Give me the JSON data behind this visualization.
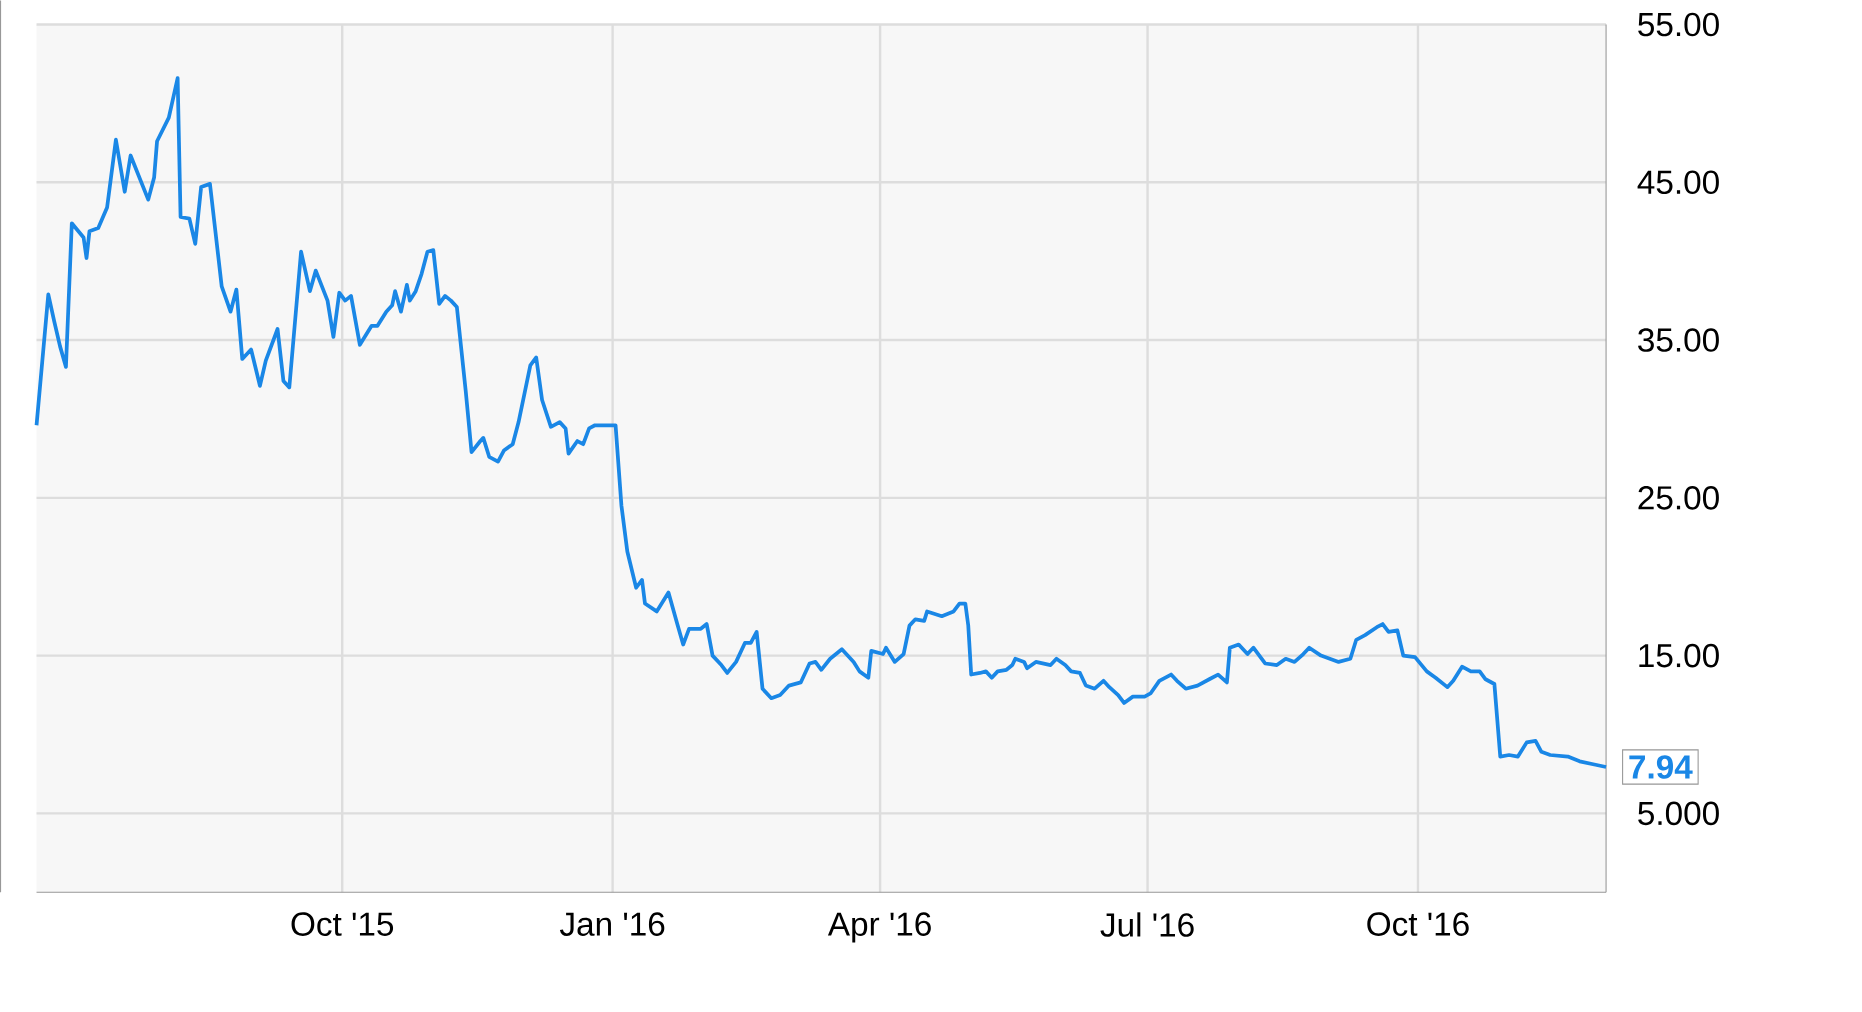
{
  "chart_data": {
    "type": "line",
    "color": "#1a87e6",
    "grid": true,
    "xlim": [
      "2015-06-19",
      "2016-12-04"
    ],
    "ylim": [
      0,
      55
    ],
    "xticks": [
      {
        "value": "2015-10-01",
        "label": "Oct '15"
      },
      {
        "value": "2016-01-01",
        "label": "Jan '16"
      },
      {
        "value": "2016-04-01",
        "label": "Apr '16"
      },
      {
        "value": "2016-07-01",
        "label": "Jul '16"
      },
      {
        "value": "2016-10-01",
        "label": "Oct '16"
      }
    ],
    "yticks": [
      {
        "value": 5,
        "label": "5.000"
      },
      {
        "value": 15,
        "label": "15.00"
      },
      {
        "value": 25,
        "label": "25.00"
      },
      {
        "value": 35,
        "label": "35.00"
      },
      {
        "value": 45,
        "label": "45.00"
      },
      {
        "value": 55,
        "label": "55.00"
      }
    ],
    "annotations": [
      {
        "text": "7.94",
        "x": "2016-12-04",
        "y": 7.94
      }
    ],
    "x": [
      "2015-06-19",
      "2015-06-23",
      "2015-06-25",
      "2015-06-27",
      "2015-06-29",
      "2015-07-01",
      "2015-07-05",
      "2015-07-06",
      "2015-07-07",
      "2015-07-10",
      "2015-07-13",
      "2015-07-16",
      "2015-07-19",
      "2015-07-21",
      "2015-07-24",
      "2015-07-27",
      "2015-07-29",
      "2015-07-30",
      "2015-08-03",
      "2015-08-06",
      "2015-08-07",
      "2015-08-10",
      "2015-08-12",
      "2015-08-14",
      "2015-08-17",
      "2015-08-21",
      "2015-08-24",
      "2015-08-26",
      "2015-08-28",
      "2015-08-31",
      "2015-09-03",
      "2015-09-05",
      "2015-09-09",
      "2015-09-11",
      "2015-09-13",
      "2015-09-17",
      "2015-09-20",
      "2015-09-22",
      "2015-09-26",
      "2015-09-28",
      "2015-09-30",
      "2015-10-02",
      "2015-10-04",
      "2015-10-07",
      "2015-10-11",
      "2015-10-13",
      "2015-10-16",
      "2015-10-18",
      "2015-10-19",
      "2015-10-21",
      "2015-10-23",
      "2015-10-24",
      "2015-10-26",
      "2015-10-28",
      "2015-10-30",
      "2015-11-01",
      "2015-11-03",
      "2015-11-05",
      "2015-11-07",
      "2015-11-09",
      "2015-11-12",
      "2015-11-14",
      "2015-11-17",
      "2015-11-18",
      "2015-11-20",
      "2015-11-23",
      "2015-11-25",
      "2015-11-28",
      "2015-11-30",
      "2015-12-04",
      "2015-12-06",
      "2015-12-08",
      "2015-12-11",
      "2015-12-14",
      "2015-12-16",
      "2015-12-17",
      "2015-12-20",
      "2015-12-22",
      "2015-12-24",
      "2015-12-26",
      "2016-01-02",
      "2016-01-04",
      "2016-01-06",
      "2016-01-09",
      "2016-01-11",
      "2016-01-12",
      "2016-01-16",
      "2016-01-20",
      "2016-01-23",
      "2016-01-25",
      "2016-01-27",
      "2016-01-31",
      "2016-02-02",
      "2016-02-04",
      "2016-02-07",
      "2016-02-09",
      "2016-02-12",
      "2016-02-15",
      "2016-02-17",
      "2016-02-19",
      "2016-02-21",
      "2016-02-24",
      "2016-02-27",
      "2016-03-01",
      "2016-03-05",
      "2016-03-08",
      "2016-03-10",
      "2016-03-12",
      "2016-03-15",
      "2016-03-19",
      "2016-03-23",
      "2016-03-25",
      "2016-03-28",
      "2016-03-29",
      "2016-04-02",
      "2016-04-03",
      "2016-04-06",
      "2016-04-09",
      "2016-04-11",
      "2016-04-13",
      "2016-04-16",
      "2016-04-17",
      "2016-04-22",
      "2016-04-26",
      "2016-04-28",
      "2016-04-30",
      "2016-05-01",
      "2016-05-02",
      "2016-05-05",
      "2016-05-07",
      "2016-05-09",
      "2016-05-11",
      "2016-05-14",
      "2016-05-16",
      "2016-05-17",
      "2016-05-20",
      "2016-05-21",
      "2016-05-24",
      "2016-05-29",
      "2016-05-31",
      "2016-06-03",
      "2016-06-05",
      "2016-06-08",
      "2016-06-10",
      "2016-06-13",
      "2016-06-16",
      "2016-06-18",
      "2016-06-21",
      "2016-06-23",
      "2016-06-26",
      "2016-06-30",
      "2016-07-02",
      "2016-07-05",
      "2016-07-09",
      "2016-07-11",
      "2016-07-14",
      "2016-07-18",
      "2016-07-22",
      "2016-07-25",
      "2016-07-28",
      "2016-07-29",
      "2016-08-01",
      "2016-08-04",
      "2016-08-06",
      "2016-08-10",
      "2016-08-14",
      "2016-08-17",
      "2016-08-20",
      "2016-08-23",
      "2016-08-25",
      "2016-08-29",
      "2016-09-01",
      "2016-09-04",
      "2016-09-08",
      "2016-09-10",
      "2016-09-13",
      "2016-09-17",
      "2016-09-19",
      "2016-09-21",
      "2016-09-24",
      "2016-09-26",
      "2016-09-30",
      "2016-10-04",
      "2016-10-07",
      "2016-10-11",
      "2016-10-13",
      "2016-10-16",
      "2016-10-19",
      "2016-10-22",
      "2016-10-24",
      "2016-10-27",
      "2016-10-29",
      "2016-11-01",
      "2016-11-04",
      "2016-11-07",
      "2016-11-10",
      "2016-11-12",
      "2016-11-15",
      "2016-11-21",
      "2016-11-25",
      "2016-11-30",
      "2016-12-04"
    ],
    "values": [
      29.6,
      37.9,
      36.2,
      34.6,
      33.3,
      42.4,
      41.5,
      40.2,
      41.9,
      42.1,
      43.4,
      47.7,
      44.4,
      46.7,
      45.3,
      43.9,
      45.3,
      47.6,
      49.1,
      51.6,
      42.8,
      42.7,
      41.1,
      44.7,
      44.9,
      38.4,
      36.8,
      38.2,
      33.8,
      34.4,
      32.1,
      33.7,
      35.7,
      32.4,
      32.0,
      40.6,
      38.1,
      39.4,
      37.5,
      35.2,
      38.0,
      37.5,
      37.8,
      34.7,
      35.9,
      35.9,
      36.8,
      37.2,
      38.1,
      36.8,
      38.5,
      37.5,
      38.1,
      39.2,
      40.6,
      40.7,
      37.3,
      37.8,
      37.5,
      37.1,
      31.8,
      27.9,
      28.6,
      28.8,
      27.6,
      27.3,
      28.0,
      28.4,
      29.8,
      33.4,
      33.9,
      31.2,
      29.5,
      29.8,
      29.4,
      27.8,
      28.6,
      28.4,
      29.4,
      29.6,
      29.6,
      24.5,
      21.6,
      19.3,
      19.8,
      18.3,
      17.8,
      19.0,
      17.0,
      15.7,
      16.7,
      16.7,
      17.0,
      15.0,
      14.4,
      13.9,
      14.6,
      15.8,
      15.8,
      16.5,
      12.9,
      12.3,
      12.5,
      13.1,
      13.3,
      14.5,
      14.6,
      14.1,
      14.8,
      15.4,
      14.6,
      14.0,
      13.6,
      15.3,
      15.1,
      15.5,
      14.6,
      15.1,
      16.9,
      17.3,
      17.2,
      17.8,
      17.5,
      17.8,
      18.3,
      18.3,
      16.9,
      13.8,
      13.9,
      14.0,
      13.6,
      14.0,
      14.1,
      14.4,
      14.8,
      14.6,
      14.2,
      14.6,
      14.4,
      14.8,
      14.4,
      14.0,
      13.9,
      13.1,
      12.9,
      13.4,
      13.0,
      12.5,
      12.0,
      12.4,
      12.4,
      12.6,
      13.4,
      13.8,
      13.4,
      12.9,
      13.1,
      13.5,
      13.8,
      13.3,
      15.5,
      15.7,
      15.1,
      15.5,
      14.5,
      14.4,
      14.8,
      14.6,
      15.1,
      15.5,
      15.0,
      14.8,
      14.6,
      14.8,
      16.0,
      16.3,
      16.8,
      17.0,
      16.5,
      16.6,
      15.0,
      14.9,
      14.0,
      13.6,
      13.0,
      13.4,
      14.3,
      14.0,
      14.0,
      13.5,
      13.2,
      8.6,
      8.7,
      8.6,
      9.5,
      9.6,
      8.9,
      8.7,
      8.6,
      8.3,
      8.1,
      7.94
    ]
  }
}
